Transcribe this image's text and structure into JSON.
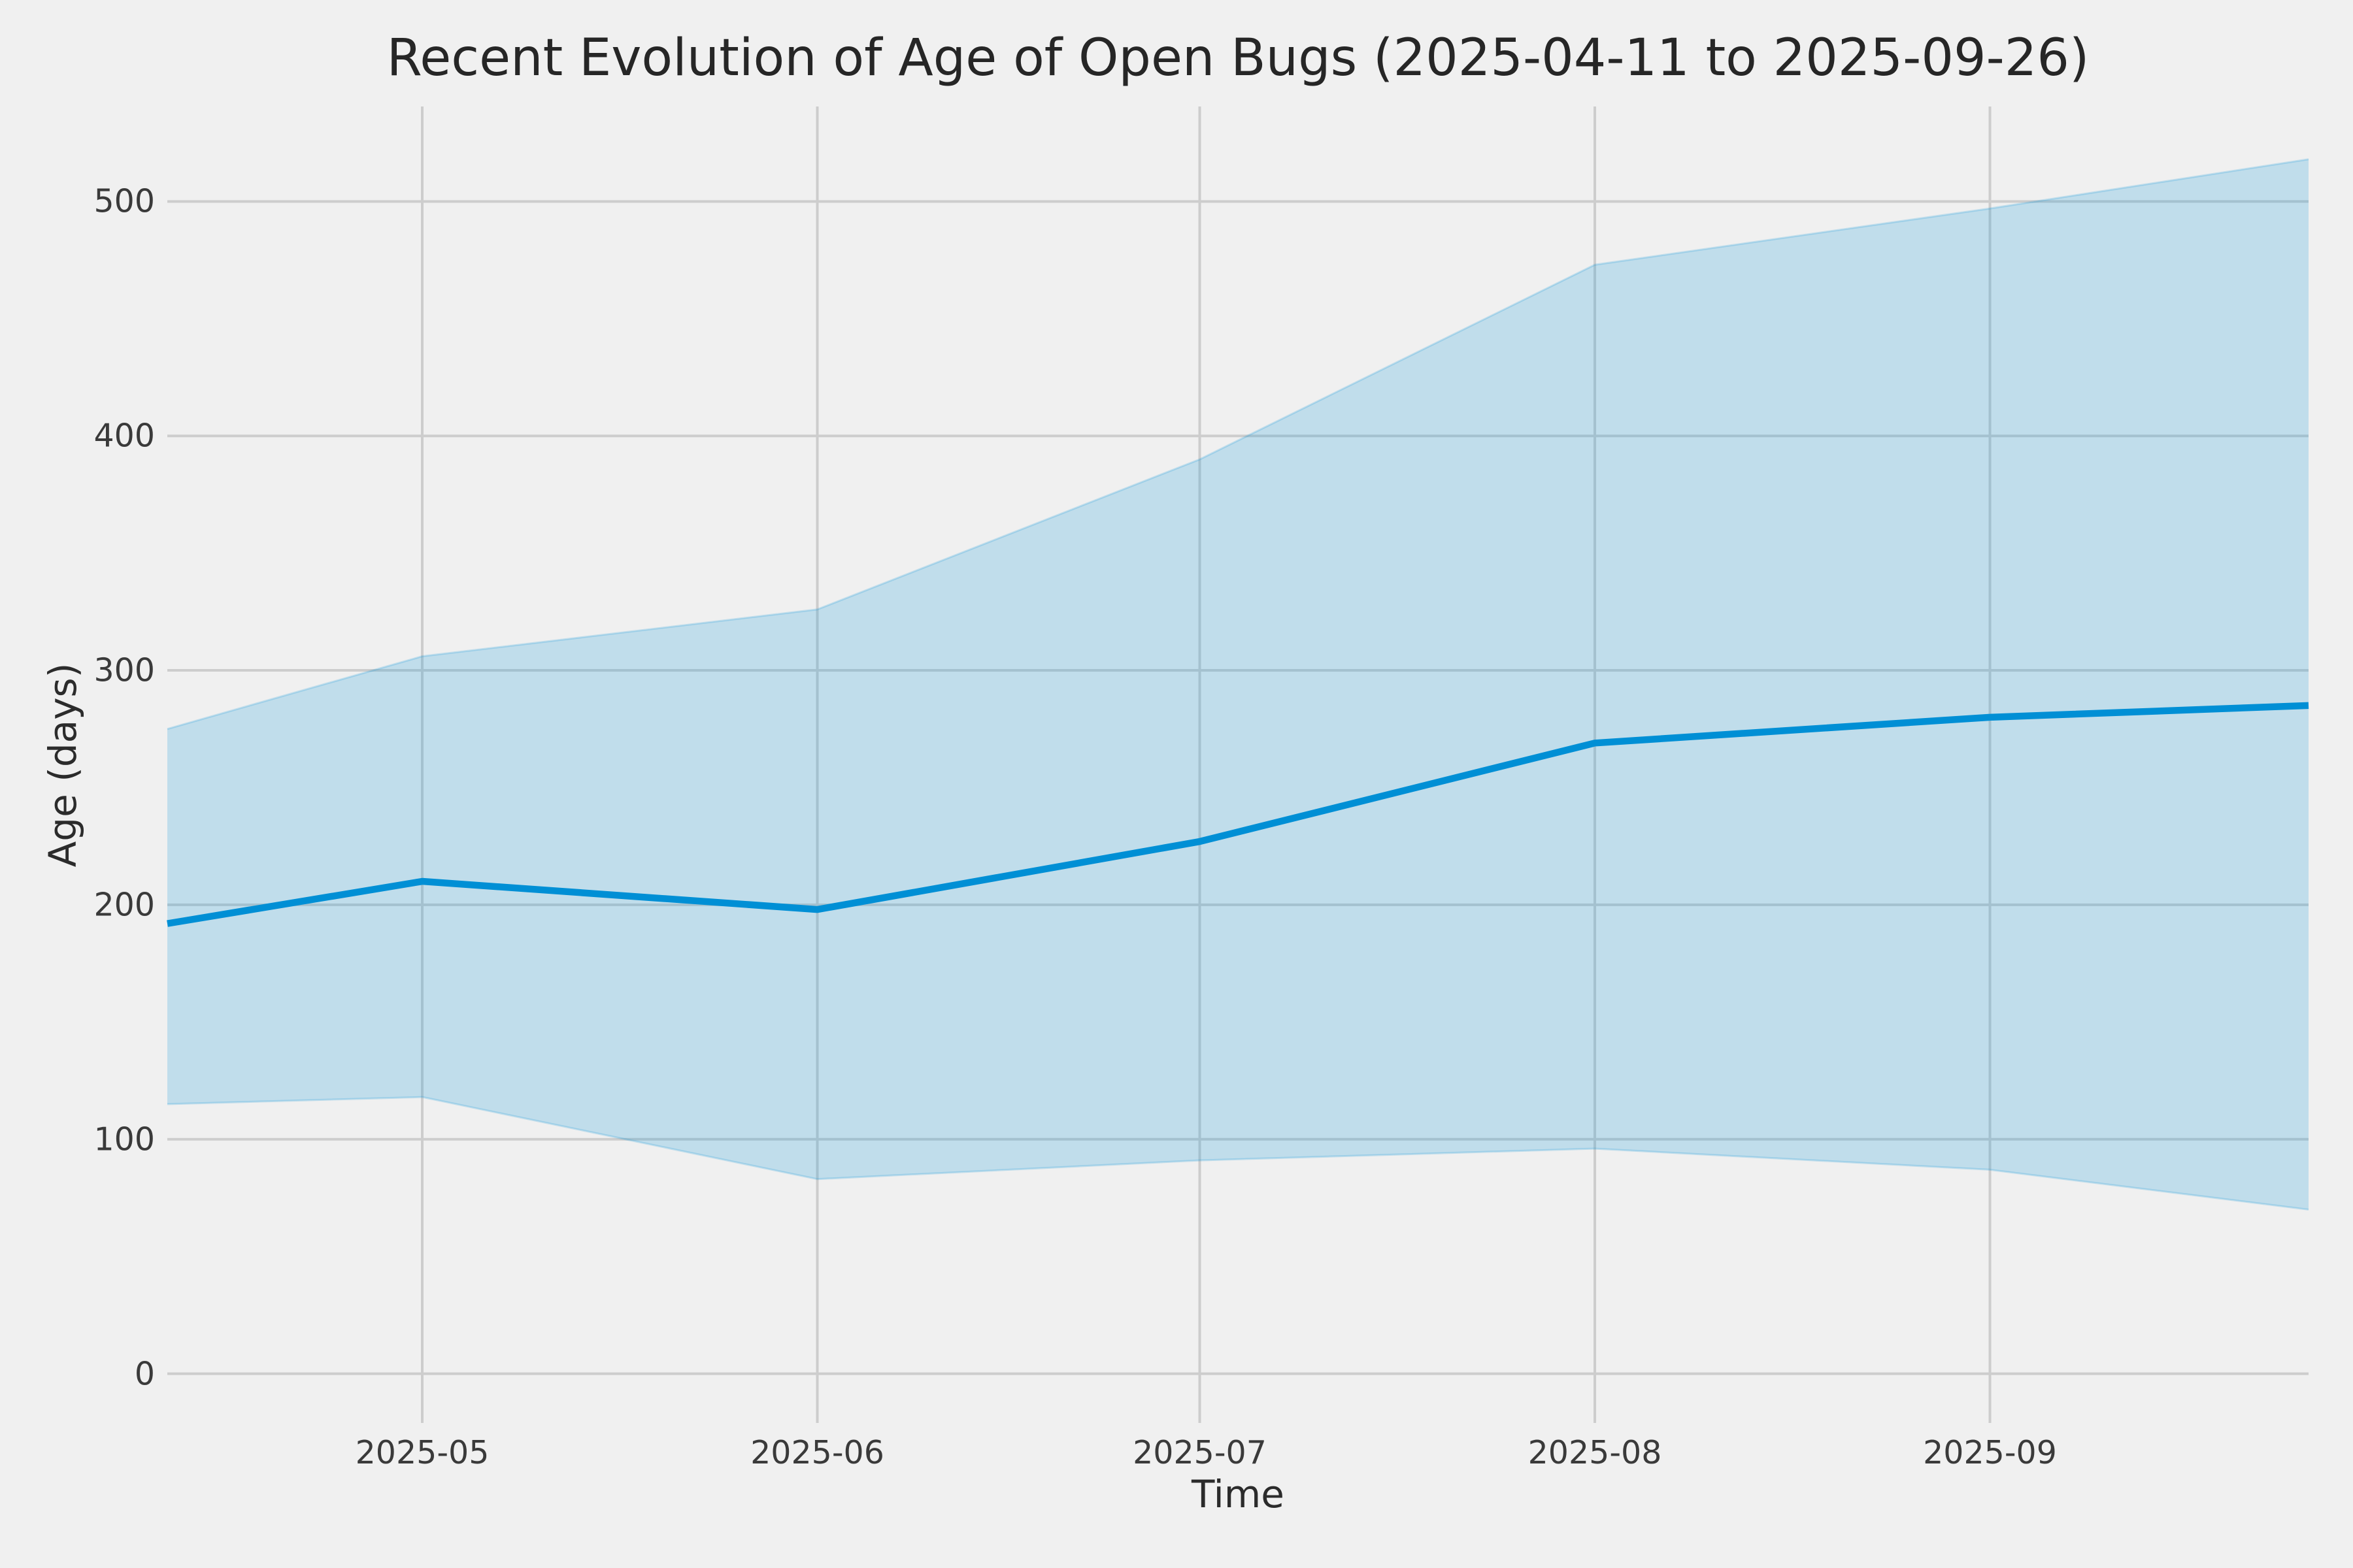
{
  "chart_data": {
    "type": "line",
    "title": "Recent Evolution of Age of Open Bugs (2025-04-11 to 2025-09-26)",
    "xlabel": "Time",
    "ylabel": "Age (days)",
    "x_dates": [
      "2025-04-11",
      "2025-05-01",
      "2025-06-01",
      "2025-07-01",
      "2025-08-01",
      "2025-09-01",
      "2025-09-26"
    ],
    "x_days": [
      0,
      20,
      51,
      81,
      112,
      143,
      168
    ],
    "series": [
      {
        "name": "age_median_line",
        "values": [
          192,
          210,
          198,
          227,
          269,
          280,
          285
        ]
      },
      {
        "name": "band_low",
        "values": [
          115,
          118,
          83,
          91,
          96,
          87,
          70
        ]
      },
      {
        "name": "band_high",
        "values": [
          275,
          306,
          326,
          390,
          473,
          497,
          518
        ]
      }
    ],
    "x_tick_labels": [
      "2025-05",
      "2025-06",
      "2025-07",
      "2025-08",
      "2025-09"
    ],
    "x_tick_days": [
      20,
      51,
      81,
      112,
      143
    ],
    "y_tick_labels": [
      "0",
      "100",
      "200",
      "300",
      "400",
      "500"
    ],
    "y_ticks": [
      0,
      100,
      200,
      300,
      400,
      500
    ],
    "xlim_days": [
      0,
      168
    ],
    "ylim": [
      -21,
      540.5
    ],
    "grid": true,
    "legend_position": "none",
    "colors": {
      "line": "#008fd5",
      "band_fill": "rgba(0,143,213,0.20)",
      "band_edge": "rgba(0,143,213,0.20)",
      "background": "#f0f0f0",
      "grid": "#cdcdcd",
      "tick_text": "#3a3a3a",
      "title_text": "#262626"
    }
  }
}
